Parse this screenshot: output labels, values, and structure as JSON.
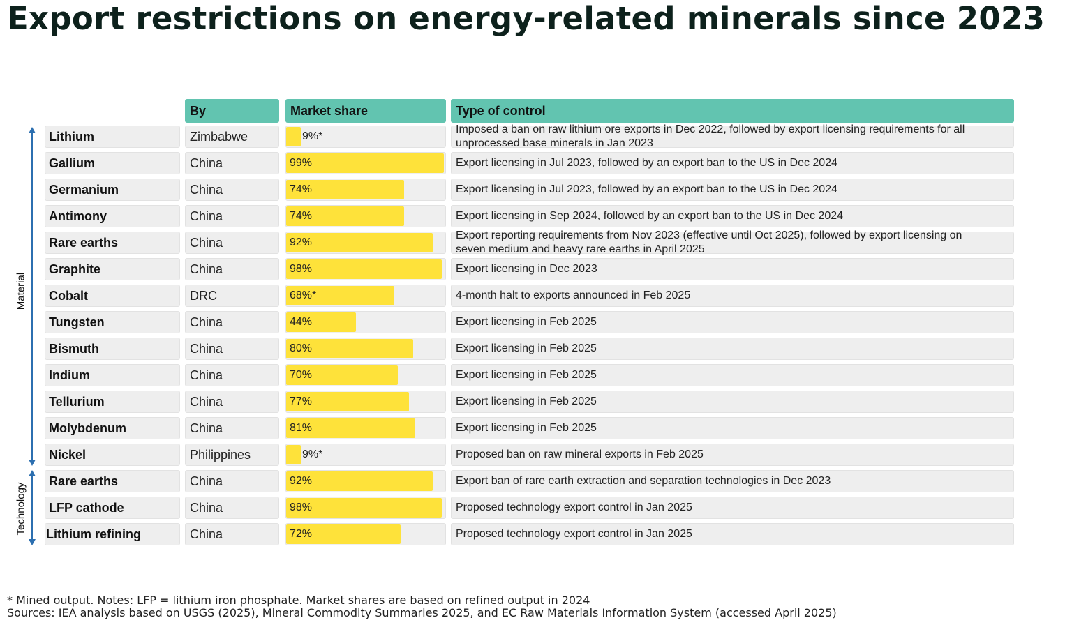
{
  "title": "Export restrictions on energy-related minerals since 2023",
  "headers": {
    "by": "By",
    "share": "Market share",
    "control": "Type of control"
  },
  "group_labels": {
    "material": "Material",
    "technology": "Technology"
  },
  "colors": {
    "header": "#62c4b0",
    "bar": "#fee23a",
    "arrow": "#2c6fb0"
  },
  "chart_data": {
    "type": "table",
    "title": "Export restrictions on energy-related minerals since 2023",
    "columns": [
      "",
      "By",
      "Market share",
      "Type of control"
    ],
    "groups": [
      {
        "name": "Material",
        "rows": [
          0,
          12
        ]
      },
      {
        "name": "Technology",
        "rows": [
          13,
          15
        ]
      }
    ],
    "rows": [
      {
        "item": "Lithium",
        "by": "Zimbabwe",
        "share": 9,
        "share_label": "9%*",
        "control": "Imposed a ban on raw lithium ore exports in Dec 2022, followed by export licensing requirements for all unprocessed base minerals in Jan 2023"
      },
      {
        "item": "Gallium",
        "by": "China",
        "share": 99,
        "share_label": "99%",
        "control": "Export licensing in Jul 2023, followed by an export ban to the US in Dec 2024"
      },
      {
        "item": "Germanium",
        "by": "China",
        "share": 74,
        "share_label": "74%",
        "control": "Export licensing in Jul 2023, followed by an export ban to the US in Dec 2024"
      },
      {
        "item": "Antimony",
        "by": "China",
        "share": 74,
        "share_label": "74%",
        "control": "Export licensing in Sep 2024, followed by an export ban to the US in Dec 2024"
      },
      {
        "item": "Rare earths",
        "by": "China",
        "share": 92,
        "share_label": "92%",
        "control": "Export reporting requirements from Nov 2023 (effective until Oct 2025), followed by export licensing on seven medium and heavy rare earths in April 2025"
      },
      {
        "item": "Graphite",
        "by": "China",
        "share": 98,
        "share_label": "98%",
        "control": "Export licensing in Dec 2023"
      },
      {
        "item": "Cobalt",
        "by": "DRC",
        "share": 68,
        "share_label": "68%*",
        "control": "4-month halt to exports announced in Feb 2025"
      },
      {
        "item": "Tungsten",
        "by": "China",
        "share": 44,
        "share_label": "44%",
        "control": "Export licensing in Feb 2025"
      },
      {
        "item": "Bismuth",
        "by": "China",
        "share": 80,
        "share_label": "80%",
        "control": "Export licensing in Feb 2025"
      },
      {
        "item": "Indium",
        "by": "China",
        "share": 70,
        "share_label": "70%",
        "control": "Export licensing in Feb 2025"
      },
      {
        "item": "Tellurium",
        "by": "China",
        "share": 77,
        "share_label": "77%",
        "control": "Export licensing in Feb 2025"
      },
      {
        "item": "Molybdenum",
        "by": "China",
        "share": 81,
        "share_label": "81%",
        "control": "Export licensing in Feb 2025"
      },
      {
        "item": "Nickel",
        "by": "Philippines",
        "share": 9,
        "share_label": "9%*",
        "control": "Proposed ban on raw mineral exports in Feb 2025"
      },
      {
        "item": "Rare earths",
        "by": "China",
        "share": 92,
        "share_label": "92%",
        "control": "Export ban of rare earth extraction and separation technologies in Dec 2023"
      },
      {
        "item": "LFP cathode",
        "by": "China",
        "share": 98,
        "share_label": "98%",
        "control": "Proposed technology export control in Jan 2025"
      },
      {
        "item": "Lithium refining",
        "by": "China",
        "share": 72,
        "share_label": "72%",
        "control": "Proposed technology export control in Jan 2025"
      }
    ]
  },
  "notes": {
    "line1": "* Mined output. Notes: LFP = lithium iron phosphate. Market shares are based on refined output in 2024",
    "line2": "Sources: IEA analysis based on USGS (2025), Mineral Commodity Summaries 2025, and EC Raw Materials Information System (accessed April 2025)"
  }
}
